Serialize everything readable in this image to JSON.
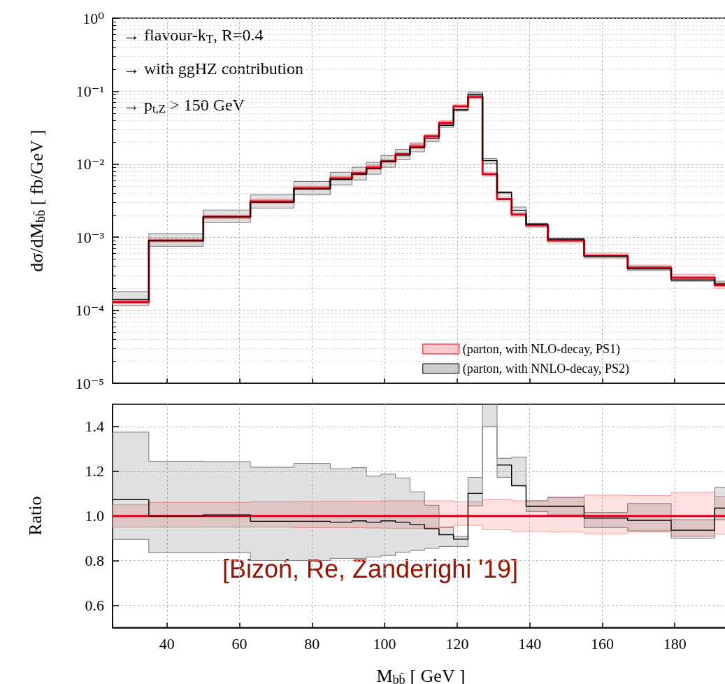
{
  "chart_data": [
    {
      "type": "step",
      "ylabel": "dσ/dM$_{bb̄}$ [ fb/GeV ]",
      "annotations": [
        "→ flavour-k$_{T}$, R=0.4",
        "→ with ggHZ contribution",
        "→ p$_{t,Z}$ > 150 GeV"
      ],
      "x": [
        25,
        35,
        50,
        63,
        75,
        85,
        91,
        95,
        99,
        103,
        107,
        111,
        115,
        119,
        123,
        127,
        131,
        135,
        139,
        145,
        155,
        167,
        179,
        191,
        195
      ],
      "series": [
        {
          "name": "(parton, with NLO-decay, PS1)",
          "color": "#e3001b",
          "values": [
            0.00013,
            0.0009,
            0.0019,
            0.0031,
            0.0047,
            0.0064,
            0.0075,
            0.009,
            0.011,
            0.0137,
            0.0175,
            0.024,
            0.037,
            0.062,
            0.083,
            0.0073,
            0.00335,
            0.00205,
            0.00145,
            0.0009,
            0.00056,
            0.00038,
            0.00028,
            0.00022,
            0.00022
          ],
          "lower": [
            0.000124,
            0.00086,
            0.0018,
            0.0029,
            0.00445,
            0.0061,
            0.0071,
            0.0085,
            0.0104,
            0.0129,
            0.0165,
            0.0228,
            0.035,
            0.059,
            0.0795,
            0.00685,
            0.00314,
            0.00191,
            0.00135,
            0.000835,
            0.000515,
            0.00035,
            0.000255,
            0.0002,
            0.0002
          ],
          "upper": [
            0.000137,
            0.00095,
            0.002,
            0.0033,
            0.005,
            0.0068,
            0.008,
            0.0096,
            0.0117,
            0.0146,
            0.0187,
            0.0256,
            0.0395,
            0.066,
            0.088,
            0.0078,
            0.0036,
            0.00219,
            0.00155,
            0.000975,
            0.00061,
            0.000415,
            0.00031,
            0.00024,
            0.00024
          ]
        },
        {
          "name": "(parton, with NNLO-decay, PS2)",
          "color": "#000000",
          "values": [
            0.00014,
            0.0009,
            0.0019,
            0.003,
            0.0046,
            0.0062,
            0.0073,
            0.0087,
            0.0108,
            0.0133,
            0.0168,
            0.0226,
            0.034,
            0.0556,
            0.091,
            0.0112,
            0.0041,
            0.00233,
            0.00151,
            0.00094,
            0.00055,
            0.00037,
            0.00026,
            0.00023,
            0.00023
          ],
          "lower": [
            0.000116,
            0.00075,
            0.00159,
            0.0025,
            0.0038,
            0.0052,
            0.0061,
            0.0073,
            0.0091,
            0.0115,
            0.0148,
            0.0205,
            0.032,
            0.0535,
            0.087,
            0.0102,
            0.00393,
            0.00233,
            0.00148,
            0.0009,
            0.00053,
            0.000355,
            0.00025,
            0.000215,
            0.000215
          ],
          "upper": [
            0.00018,
            0.00112,
            0.00236,
            0.0038,
            0.0058,
            0.00775,
            0.0091,
            0.0106,
            0.0131,
            0.016,
            0.0194,
            0.025,
            0.035,
            0.0563,
            0.097,
            0.012,
            0.0042,
            0.00259,
            0.00155,
            0.00097,
            0.00057,
            0.0004,
            0.000275,
            0.00025,
            0.00025
          ]
        }
      ],
      "xlim": [
        25,
        195
      ],
      "xticks": [
        40,
        60,
        80,
        100,
        120,
        140,
        160,
        180
      ],
      "log": "y",
      "ylim": [
        1e-05,
        1
      ],
      "yticks": [
        {
          "value": 1e-05,
          "label": "10⁻⁵"
        },
        {
          "value": 0.0001,
          "label": "10⁻⁴"
        },
        {
          "value": 0.001,
          "label": "10⁻³"
        },
        {
          "value": 0.01,
          "label": "10⁻²"
        },
        {
          "value": 0.1,
          "label": "10⁻¹"
        },
        {
          "value": 1,
          "label": "10⁰"
        }
      ],
      "tick_labels": "y",
      "grid": true,
      "legend": "bottom right"
    },
    {
      "type": "step",
      "xlabel": "M$_{bb̄}$ [ GeV ]",
      "ylabel": "Ratio",
      "annotations": [
        "[Bizoń, Re, Zanderighi '19]"
      ],
      "x": [
        25,
        35,
        50,
        63,
        75,
        85,
        91,
        95,
        99,
        103,
        107,
        111,
        115,
        119,
        123,
        127,
        131,
        135,
        139,
        145,
        155,
        167,
        179,
        191,
        195
      ],
      "series": [
        {
          "color": "#e3001b",
          "values": [
            1,
            1,
            1,
            1,
            1,
            1,
            1,
            1,
            1,
            1,
            1,
            1,
            1,
            1,
            1,
            1,
            1,
            1,
            1,
            1,
            1,
            1,
            1,
            1,
            1
          ],
          "lower": [
            0.95,
            0.95,
            0.95,
            0.95,
            0.948,
            0.948,
            0.947,
            0.946,
            0.945,
            0.945,
            0.945,
            0.948,
            0.948,
            0.958,
            0.958,
            0.938,
            0.938,
            0.93,
            0.93,
            0.928,
            0.92,
            0.928,
            0.908,
            0.918,
            0.918
          ],
          "upper": [
            1.05,
            1.061,
            1.061,
            1.063,
            1.065,
            1.065,
            1.066,
            1.066,
            1.068,
            1.068,
            1.068,
            1.068,
            1.068,
            1.063,
            1.063,
            1.073,
            1.073,
            1.068,
            1.068,
            1.083,
            1.093,
            1.091,
            1.106,
            1.088,
            1.088
          ]
        },
        {
          "color": "#000000",
          "values": [
            1.073,
            1.0,
            1.005,
            0.976,
            0.976,
            0.972,
            0.978,
            0.972,
            0.978,
            0.972,
            0.961,
            0.943,
            0.916,
            0.896,
            1.101,
            null,
            1.228,
            1.135,
            1.043,
            1.043,
            0.99,
            0.98,
            0.936,
            1.035,
            1.035
          ],
          "lower": [
            0.895,
            0.835,
            0.835,
            0.8,
            0.8,
            0.81,
            0.81,
            0.816,
            0.823,
            0.838,
            0.845,
            0.855,
            0.863,
            0.863,
            1.045,
            1.4,
            1.173,
            1.135,
            1.02,
            1.005,
            0.948,
            0.933,
            0.9,
            0.983,
            0.983
          ],
          "upper": [
            1.375,
            1.245,
            1.243,
            1.218,
            1.235,
            1.211,
            1.216,
            1.178,
            1.187,
            1.17,
            1.108,
            1.048,
            0.95,
            0.908,
            1.173,
            1.5,
            1.258,
            1.263,
            1.068,
            1.083,
            1.016,
            1.056,
            0.983,
            1.128,
            1.128
          ]
        }
      ],
      "xlim": [
        25,
        195
      ],
      "xticks": [
        40,
        60,
        80,
        100,
        120,
        140,
        160,
        180
      ],
      "ylim": [
        0.5,
        1.5
      ],
      "yticks": [
        0.6,
        0.8,
        {
          "value": 1,
          "label": "1.0"
        },
        1.2,
        1.4
      ],
      "grid": true
    }
  ]
}
